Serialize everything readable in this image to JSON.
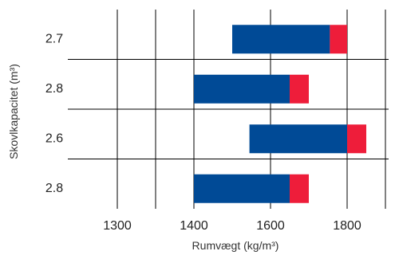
{
  "chart_data": {
    "type": "bar",
    "orientation": "horizontal",
    "stacked": true,
    "xlabel": "Rumvægt (kg/m³)",
    "ylabel": "Skovlkapacitet (m³)",
    "x_ticks": [
      1300,
      1400,
      1600,
      1800
    ],
    "x_tick_labels": [
      "1300",
      "1400",
      "1600",
      "1800"
    ],
    "categories": [
      "2.7",
      "2.8",
      "2.6",
      "2.8"
    ],
    "rows": [
      {
        "label": "2.7",
        "start": 1500,
        "main_end": 1755,
        "end": 1800
      },
      {
        "label": "2.8",
        "start": 1400,
        "main_end": 1650,
        "end": 1700
      },
      {
        "label": "2.6",
        "start": 1545,
        "main_end": 1800,
        "end": 1850
      },
      {
        "label": "2.8",
        "start": 1400,
        "main_end": 1650,
        "end": 1700
      }
    ],
    "grid": true,
    "colors": {
      "main": "#004a96",
      "extension": "#ee1d3a",
      "grid": "#000000",
      "text": "#222222"
    }
  }
}
